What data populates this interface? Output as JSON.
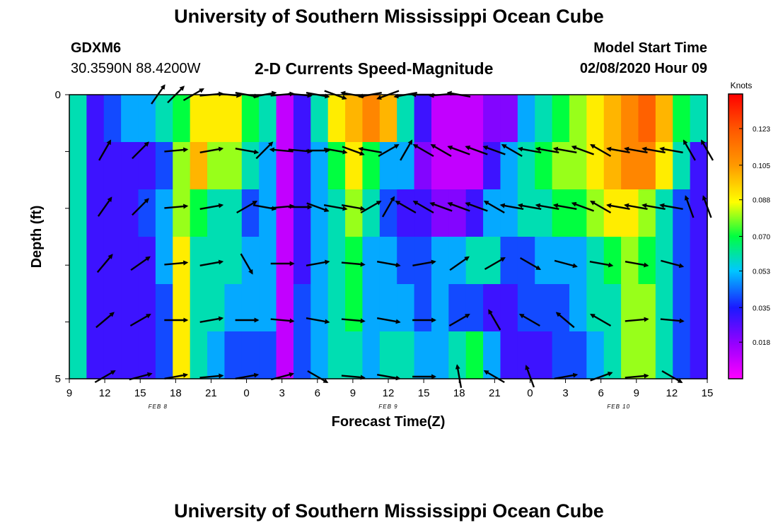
{
  "header": {
    "title": "University of Southern Mississippi Ocean Cube",
    "station_id": "GDXM6",
    "station_coords": "30.3590N 88.4200W",
    "subtitle": "2-D Currents Speed-Magnitude",
    "model_start_label": "Model Start Time",
    "model_start_value": "02/08/2020 Hour 09"
  },
  "footer": {
    "title": "University of Southern Mississippi Ocean Cube"
  },
  "chart_data": {
    "type": "heatmap",
    "title": "2-D Currents Speed-Magnitude",
    "xlabel": "Forecast Time(Z)",
    "ylabel": "Depth (ft)",
    "x_tick_labels": [
      "9",
      "12",
      "15",
      "18",
      "21",
      "0",
      "3",
      "6",
      "9",
      "12",
      "15",
      "18",
      "21",
      "0",
      "3",
      "6",
      "9",
      "12",
      "15"
    ],
    "x_hours_range": [
      0,
      54
    ],
    "date_labels": [
      {
        "text": "FEB 8",
        "hour": 7.5
      },
      {
        "text": "FEB 9",
        "hour": 27
      },
      {
        "text": "FEB 10",
        "hour": 46.5
      }
    ],
    "y_tick_labels": [
      "0",
      "",
      "",
      "",
      "",
      "5"
    ],
    "ylim": [
      0,
      5
    ],
    "colorbar": {
      "label": "Knots",
      "ticks": [
        "0.018",
        "0.035",
        "0.053",
        "0.070",
        "0.088",
        "0.105",
        "0.123"
      ],
      "min": 0.0,
      "max": 0.14
    },
    "speed_grid": [
      [
        0.06,
        0.03,
        0.04,
        0.05,
        0.05,
        0.06,
        0.07,
        0.09,
        0.09,
        0.09,
        0.07,
        0.06,
        0.01,
        0.03,
        0.06,
        0.09,
        0.1,
        0.11,
        0.1,
        0.06,
        0.03,
        0.01,
        0.01,
        0.01,
        0.02,
        0.02,
        0.05,
        0.06,
        0.07,
        0.08,
        0.09,
        0.1,
        0.11,
        0.12,
        0.1,
        0.07,
        0.06
      ],
      [
        0.06,
        0.03,
        0.03,
        0.03,
        0.03,
        0.04,
        0.08,
        0.1,
        0.08,
        0.08,
        0.06,
        0.05,
        0.01,
        0.03,
        0.05,
        0.07,
        0.09,
        0.07,
        0.05,
        0.05,
        0.02,
        0.01,
        0.01,
        0.01,
        0.03,
        0.05,
        0.06,
        0.07,
        0.08,
        0.08,
        0.09,
        0.1,
        0.11,
        0.11,
        0.09,
        0.06,
        0.03
      ],
      [
        0.06,
        0.03,
        0.03,
        0.03,
        0.04,
        0.05,
        0.08,
        0.07,
        0.06,
        0.06,
        0.04,
        0.05,
        0.01,
        0.03,
        0.05,
        0.06,
        0.08,
        0.06,
        0.04,
        0.03,
        0.03,
        0.02,
        0.02,
        0.03,
        0.05,
        0.05,
        0.06,
        0.06,
        0.07,
        0.07,
        0.08,
        0.09,
        0.09,
        0.08,
        0.06,
        0.04,
        0.03
      ],
      [
        0.06,
        0.03,
        0.03,
        0.03,
        0.03,
        0.05,
        0.09,
        0.06,
        0.06,
        0.06,
        0.05,
        0.05,
        0.01,
        0.03,
        0.05,
        0.06,
        0.07,
        0.05,
        0.05,
        0.04,
        0.04,
        0.05,
        0.05,
        0.06,
        0.06,
        0.04,
        0.04,
        0.05,
        0.05,
        0.05,
        0.06,
        0.07,
        0.08,
        0.07,
        0.06,
        0.04,
        0.03
      ],
      [
        0.06,
        0.03,
        0.03,
        0.03,
        0.03,
        0.04,
        0.09,
        0.06,
        0.06,
        0.05,
        0.05,
        0.05,
        0.01,
        0.04,
        0.05,
        0.06,
        0.07,
        0.05,
        0.05,
        0.05,
        0.04,
        0.05,
        0.04,
        0.04,
        0.03,
        0.03,
        0.04,
        0.04,
        0.04,
        0.05,
        0.06,
        0.06,
        0.08,
        0.08,
        0.06,
        0.04,
        0.03
      ],
      [
        0.06,
        0.03,
        0.03,
        0.03,
        0.03,
        0.04,
        0.09,
        0.06,
        0.05,
        0.04,
        0.04,
        0.04,
        0.01,
        0.04,
        0.05,
        0.06,
        0.06,
        0.05,
        0.06,
        0.06,
        0.05,
        0.05,
        0.06,
        0.07,
        0.05,
        0.03,
        0.03,
        0.03,
        0.04,
        0.04,
        0.05,
        0.06,
        0.08,
        0.08,
        0.06,
        0.04,
        0.03
      ]
    ],
    "vectors": [
      {
        "row": 0,
        "hours": [
          7.5,
          9,
          10.5,
          12,
          13.5,
          15,
          16.5,
          18,
          19.5,
          21,
          22.5,
          24,
          25.5,
          27,
          28.5,
          30,
          31.5,
          33
        ],
        "angles": [
          35,
          45,
          60,
          85,
          95,
          100,
          80,
          85,
          95,
          100,
          110,
          280,
          260,
          250,
          260,
          270,
          265,
          280
        ]
      },
      {
        "row": 1,
        "hours": [
          3,
          6,
          9,
          12,
          15,
          16.5,
          18,
          19.5,
          21,
          22.5,
          24,
          25.5,
          27,
          28.5,
          30,
          31.5,
          33,
          34.5,
          36,
          37.5,
          39,
          40.5,
          42,
          43.5,
          45,
          46.5,
          48,
          49.5,
          51,
          52.5,
          54
        ],
        "angles": [
          30,
          45,
          85,
          80,
          100,
          45,
          275,
          95,
          90,
          100,
          110,
          280,
          60,
          30,
          300,
          300,
          290,
          290,
          290,
          300,
          280,
          280,
          280,
          290,
          300,
          280,
          280,
          280,
          280,
          330,
          330
        ]
      },
      {
        "row": 2,
        "hours": [
          3,
          6,
          9,
          12,
          15,
          16.5,
          18,
          19.5,
          21,
          22.5,
          24,
          25.5,
          27,
          28.5,
          30,
          31.5,
          33,
          34.5,
          36,
          37.5,
          39,
          40.5,
          42,
          43.5,
          45,
          46.5,
          48,
          49.5,
          51,
          52.5,
          54
        ],
        "angles": [
          35,
          45,
          85,
          80,
          60,
          100,
          85,
          90,
          110,
          100,
          100,
          60,
          30,
          300,
          300,
          290,
          290,
          290,
          300,
          280,
          280,
          280,
          280,
          290,
          300,
          280,
          280,
          280,
          280,
          340,
          340
        ]
      },
      {
        "row": 3,
        "hours": [
          3,
          6,
          9,
          12,
          15,
          18,
          21,
          24,
          27,
          30,
          33,
          36,
          39,
          42,
          45,
          48,
          51
        ],
        "angles": [
          40,
          55,
          85,
          80,
          150,
          90,
          80,
          95,
          100,
          80,
          55,
          60,
          120,
          105,
          100,
          100,
          105
        ]
      },
      {
        "row": 4,
        "hours": [
          3,
          6,
          9,
          12,
          15,
          18,
          21,
          24,
          27,
          30,
          33,
          36,
          39,
          42,
          45,
          48,
          51
        ],
        "angles": [
          50,
          60,
          90,
          80,
          90,
          95,
          100,
          95,
          100,
          90,
          60,
          330,
          300,
          310,
          300,
          85,
          95
        ]
      },
      {
        "row": 5,
        "hours": [
          3,
          6,
          9,
          12,
          15,
          18,
          21,
          24,
          27,
          30,
          33,
          36,
          39,
          42,
          45,
          48,
          51
        ],
        "angles": [
          60,
          75,
          80,
          85,
          80,
          75,
          120,
          95,
          100,
          90,
          350,
          300,
          340,
          80,
          70,
          85,
          120
        ]
      }
    ]
  }
}
